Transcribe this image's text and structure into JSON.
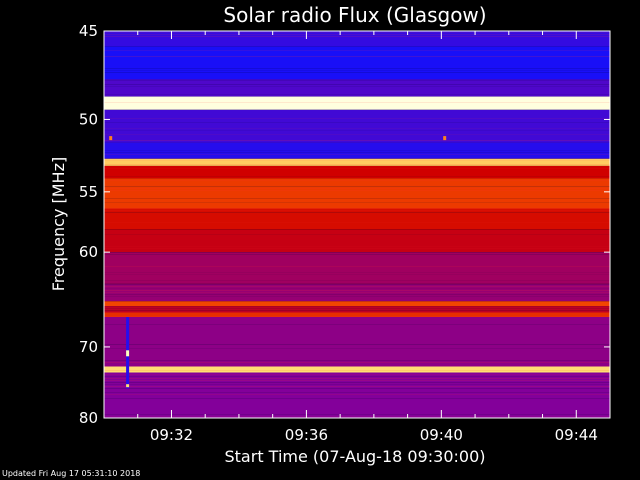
{
  "chart_data": {
    "type": "heatmap",
    "title": "Solar radio Flux (Glasgow)",
    "xlabel": "Start Time (07-Aug-18 09:30:00)",
    "ylabel": "Frequency [MHz]",
    "x_ticks": [
      "09:32",
      "09:36",
      "09:40",
      "09:44"
    ],
    "x_tick_minutes": [
      2,
      6,
      10,
      14
    ],
    "xlim_minutes": [
      0,
      15
    ],
    "y_ticks": [
      45,
      50,
      55,
      60,
      70,
      80
    ],
    "ylim": [
      80,
      45
    ],
    "y_scale": "reciprocal",
    "colormap": [
      "#000060",
      "#1010ff",
      "#8000a0",
      "#d00000",
      "#ff6000",
      "#ffff90",
      "#ffffff"
    ],
    "bands": [
      {
        "from": 45.0,
        "to": 45.8,
        "level": 0.22
      },
      {
        "from": 45.8,
        "to": 47.6,
        "level": 0.18
      },
      {
        "from": 47.6,
        "to": 48.6,
        "level": 0.26
      },
      {
        "from": 48.6,
        "to": 49.4,
        "level": 0.95
      },
      {
        "from": 49.4,
        "to": 51.5,
        "level": 0.24
      },
      {
        "from": 51.5,
        "to": 52.6,
        "level": 0.2
      },
      {
        "from": 52.6,
        "to": 53.1,
        "level": 0.78
      },
      {
        "from": 53.1,
        "to": 54.0,
        "level": 0.5
      },
      {
        "from": 54.0,
        "to": 56.3,
        "level": 0.6
      },
      {
        "from": 56.3,
        "to": 58.0,
        "level": 0.52
      },
      {
        "from": 58.0,
        "to": 60.0,
        "level": 0.48
      },
      {
        "from": 60.0,
        "to": 63.0,
        "level": 0.4
      },
      {
        "from": 63.0,
        "to": 64.8,
        "level": 0.38
      },
      {
        "from": 64.8,
        "to": 65.3,
        "level": 0.62
      },
      {
        "from": 65.3,
        "to": 66.0,
        "level": 0.46
      },
      {
        "from": 66.0,
        "to": 66.5,
        "level": 0.58
      },
      {
        "from": 66.5,
        "to": 72.5,
        "level": 0.36
      },
      {
        "from": 72.5,
        "to": 73.3,
        "level": 0.8
      },
      {
        "from": 73.3,
        "to": 80.0,
        "level": 0.34
      }
    ],
    "spike": {
      "minute": 0.7,
      "from": 66.5,
      "to": 75.5,
      "level": 0.9
    },
    "points": [
      {
        "minute": 0.2,
        "freq": 51.2,
        "level": 0.7
      },
      {
        "minute": 10.1,
        "freq": 51.2,
        "level": 0.7
      }
    ]
  },
  "footer": "Updated Fri Aug 17 05:31:10 2018"
}
